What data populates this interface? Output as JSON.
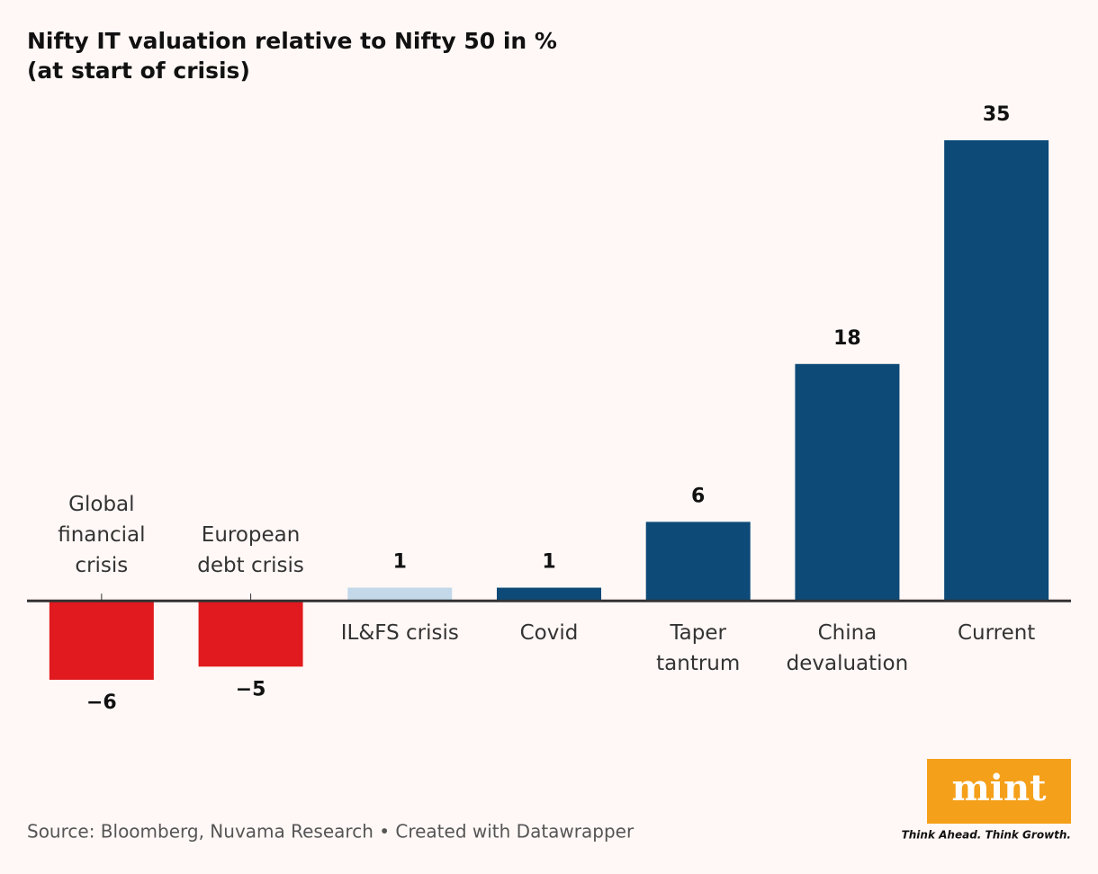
{
  "chart_data": {
    "type": "bar",
    "title": "Nifty IT valuation relative to Nifty 50 in %",
    "subtitle": "(at start of crisis)",
    "categories": [
      "Global financial crisis",
      "European debt crisis",
      "IL&FS crisis",
      "Covid",
      "Taper tantrum",
      "China devaluation",
      "Current"
    ],
    "values": [
      -6,
      -5,
      1,
      1,
      6,
      18,
      35
    ],
    "value_labels": [
      "−6",
      "−5",
      "1",
      "1",
      "6",
      "18",
      "35"
    ],
    "colors": [
      "#e01a1e",
      "#e01a1e",
      "#c3d9ea",
      "#0d4a78",
      "#0d4a78",
      "#0d4a78",
      "#0d4a78"
    ],
    "source": "Source: Bloomberg, Nuvama Research • Created with Datawrapper",
    "logo": "mint",
    "tagline": "Think Ahead. Think Growth."
  }
}
